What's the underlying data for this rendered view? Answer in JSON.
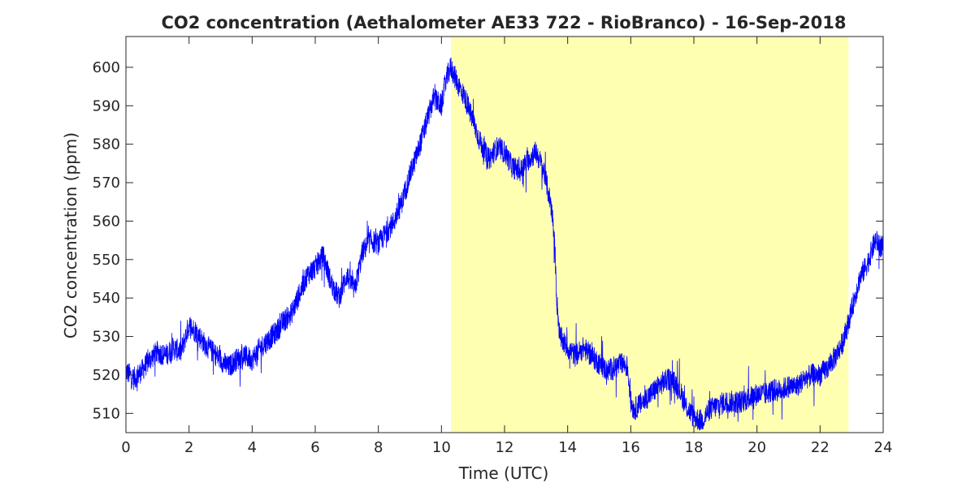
{
  "chart_data": {
    "type": "line",
    "title": "CO2 concentration (Aethalometer AE33 722 - RioBranco) - 16-Sep-2018",
    "xlabel": "Time (UTC)",
    "ylabel": "CO2 concentration (ppm)",
    "xlim": [
      0,
      24
    ],
    "ylim": [
      505,
      608
    ],
    "x_ticks": [
      0,
      2,
      4,
      6,
      8,
      10,
      12,
      14,
      16,
      18,
      20,
      22,
      24
    ],
    "y_ticks": [
      510,
      520,
      530,
      540,
      550,
      560,
      570,
      580,
      590,
      600
    ],
    "grid": false,
    "legend": "none",
    "highlight_band": {
      "x_start": 10.3,
      "x_end": 22.9,
      "color": "#ffffb2"
    },
    "series": [
      {
        "color": "#0000ff",
        "x": [
          0.0,
          0.25,
          0.5,
          0.75,
          1.0,
          1.25,
          1.5,
          1.75,
          2.0,
          2.25,
          2.5,
          2.75,
          3.0,
          3.25,
          3.5,
          3.75,
          4.0,
          4.25,
          4.5,
          4.75,
          5.0,
          5.25,
          5.5,
          5.75,
          6.0,
          6.25,
          6.5,
          6.75,
          7.0,
          7.25,
          7.5,
          7.75,
          8.0,
          8.25,
          8.5,
          8.75,
          9.0,
          9.25,
          9.5,
          9.75,
          10.0,
          10.1,
          10.2,
          10.3,
          10.4,
          10.5,
          10.75,
          11.0,
          11.25,
          11.5,
          11.75,
          12.0,
          12.25,
          12.5,
          12.75,
          13.0,
          13.25,
          13.5,
          13.6,
          13.65,
          13.75,
          14.0,
          14.25,
          14.5,
          14.75,
          15.0,
          15.25,
          15.5,
          15.75,
          15.9,
          16.0,
          16.1,
          16.25,
          16.5,
          16.75,
          17.0,
          17.25,
          17.5,
          17.75,
          18.0,
          18.25,
          18.5,
          18.75,
          19.0,
          19.25,
          19.5,
          19.75,
          20.0,
          20.25,
          20.5,
          20.75,
          21.0,
          21.25,
          21.5,
          21.75,
          22.0,
          22.25,
          22.5,
          22.75,
          23.0,
          23.25,
          23.5,
          23.75,
          24.0
        ],
        "y": [
          521,
          519,
          521,
          524,
          526,
          525,
          527,
          526,
          533,
          531,
          528,
          526,
          524,
          522,
          524,
          525,
          524,
          527,
          529,
          531,
          534,
          536,
          541,
          546,
          548,
          551,
          544,
          540,
          546,
          542,
          552,
          555,
          554,
          557,
          560,
          565,
          572,
          578,
          585,
          592,
          590,
          595,
          598,
          600,
          598,
          596,
          592,
          586,
          580,
          576,
          579,
          578,
          574,
          573,
          576,
          578,
          573,
          563,
          552,
          540,
          530,
          527,
          525,
          527,
          525,
          523,
          521,
          522,
          523,
          522,
          513,
          511,
          512,
          514,
          516,
          518,
          519,
          517,
          512,
          509,
          508,
          511,
          512,
          513,
          513,
          513,
          514,
          515,
          515,
          516,
          516,
          517,
          517,
          519,
          520,
          520,
          522,
          525,
          529,
          537,
          545,
          549,
          555,
          553
        ]
      }
    ]
  }
}
